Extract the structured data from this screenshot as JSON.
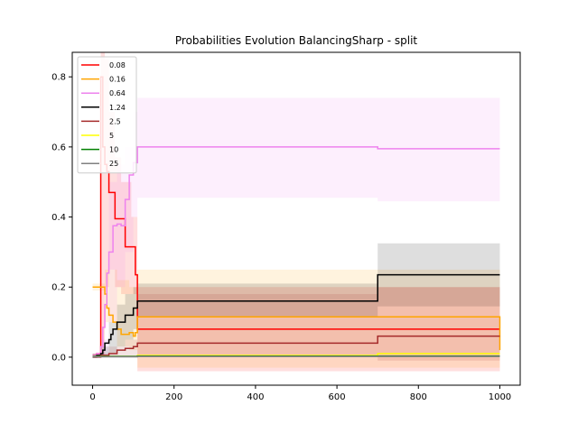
{
  "chart_data": {
    "type": "line",
    "title": "Probabilities Evolution BalancingSharp  - split",
    "xlabel": "",
    "ylabel": "",
    "xlim": [
      -50,
      1050
    ],
    "ylim": [
      -0.08,
      0.87
    ],
    "xticks": [
      0,
      200,
      400,
      600,
      800,
      1000
    ],
    "xtick_labels": [
      "0",
      "200",
      "400",
      "600",
      "800",
      "1000"
    ],
    "yticks": [
      0.0,
      0.2,
      0.4,
      0.6,
      0.8
    ],
    "ytick_labels": [
      "0.0",
      "0.2",
      "0.4",
      "0.6",
      "0.8"
    ],
    "grid": false,
    "legend_position": "top-left",
    "step": true,
    "series": [
      {
        "name": "0.08",
        "color": "#ff0000",
        "x": [
          0,
          10,
          20,
          25,
          30,
          35,
          40,
          45,
          55,
          65,
          80,
          95,
          105,
          110,
          700,
          1000
        ],
        "y": [
          0.005,
          0.01,
          0.8,
          0.6,
          0.55,
          0.53,
          0.47,
          0.47,
          0.395,
          0.395,
          0.315,
          0.315,
          0.235,
          0.08,
          0.08,
          0.08
        ],
        "band_x": [
          0,
          20,
          30,
          40,
          55,
          70,
          95,
          110,
          700,
          1000
        ],
        "band_lo": [
          0.0,
          0.0,
          0.2,
          0.25,
          0.2,
          0.18,
          0.18,
          -0.04,
          -0.04,
          -0.04
        ],
        "band_hi": [
          0.01,
          0.87,
          0.85,
          0.7,
          0.57,
          0.5,
          0.4,
          0.2,
          0.2,
          0.2
        ]
      },
      {
        "name": "0.16",
        "color": "#ffa500",
        "x": [
          0,
          10,
          20,
          30,
          35,
          40,
          50,
          60,
          70,
          90,
          100,
          105,
          110,
          700,
          1000
        ],
        "y": [
          0.2,
          0.2,
          0.2,
          0.18,
          0.14,
          0.12,
          0.1,
          0.08,
          0.065,
          0.07,
          0.06,
          0.07,
          0.115,
          0.115,
          0.02
        ],
        "band_x": [
          0,
          30,
          60,
          90,
          110,
          700,
          1000
        ],
        "band_lo": [
          0.19,
          0.1,
          0.03,
          0.02,
          -0.03,
          -0.03,
          -0.01
        ],
        "band_hi": [
          0.21,
          0.25,
          0.22,
          0.2,
          0.25,
          0.25,
          0.05
        ]
      },
      {
        "name": "0.64",
        "color": "#ee82ee",
        "x": [
          0,
          10,
          20,
          25,
          30,
          35,
          40,
          50,
          60,
          70,
          80,
          90,
          100,
          110,
          700,
          1000
        ],
        "y": [
          0.005,
          0.01,
          0.03,
          0.085,
          0.15,
          0.24,
          0.3,
          0.375,
          0.38,
          0.375,
          0.45,
          0.52,
          0.555,
          0.6,
          0.595,
          0.595
        ],
        "band_x": [
          0,
          20,
          40,
          60,
          80,
          100,
          110,
          700,
          1000
        ],
        "band_lo": [
          0.0,
          0.0,
          0.1,
          0.2,
          0.3,
          0.4,
          0.455,
          0.445,
          0.445
        ],
        "band_hi": [
          0.01,
          0.05,
          0.5,
          0.55,
          0.6,
          0.7,
          0.74,
          0.74,
          0.74
        ]
      },
      {
        "name": "1.24",
        "color": "#000000",
        "x": [
          0,
          10,
          20,
          25,
          30,
          40,
          45,
          50,
          60,
          70,
          80,
          100,
          110,
          700,
          1000
        ],
        "y": [
          0.0,
          0.005,
          0.01,
          0.02,
          0.04,
          0.05,
          0.065,
          0.08,
          0.1,
          0.1,
          0.12,
          0.14,
          0.16,
          0.235,
          0.235
        ],
        "band_x": [
          0,
          20,
          40,
          60,
          80,
          100,
          110,
          700,
          1000
        ],
        "band_lo": [
          0.0,
          0.0,
          0.01,
          0.03,
          0.05,
          0.08,
          0.115,
          0.145,
          0.145
        ],
        "band_hi": [
          0.01,
          0.03,
          0.1,
          0.15,
          0.18,
          0.2,
          0.21,
          0.325,
          0.325
        ]
      },
      {
        "name": "2.5",
        "color": "#a52a2a",
        "x": [
          0,
          20,
          40,
          60,
          80,
          100,
          110,
          700,
          1000
        ],
        "y": [
          0.0,
          0.005,
          0.01,
          0.02,
          0.025,
          0.03,
          0.04,
          0.06,
          0.06
        ],
        "band_x": [
          0,
          40,
          80,
          110,
          700,
          1000
        ],
        "band_lo": [
          0.0,
          0.0,
          0.0,
          0.0,
          -0.01,
          -0.01
        ],
        "band_hi": [
          0.01,
          0.03,
          0.05,
          0.18,
          0.2,
          0.2
        ]
      },
      {
        "name": "5",
        "color": "#ffff00",
        "x": [
          0,
          110,
          700,
          1000
        ],
        "y": [
          0.002,
          0.005,
          0.01,
          0.01
        ],
        "band_x": [],
        "band_lo": [],
        "band_hi": []
      },
      {
        "name": "10",
        "color": "#008000",
        "x": [
          0,
          110,
          700,
          1000
        ],
        "y": [
          0.002,
          0.003,
          0.003,
          0.003
        ],
        "band_x": [],
        "band_lo": [],
        "band_hi": []
      },
      {
        "name": "25",
        "color": "#808080",
        "x": [
          0,
          110,
          700,
          1000
        ],
        "y": [
          0.001,
          0.002,
          0.002,
          0.002
        ],
        "band_x": [],
        "band_lo": [],
        "band_hi": []
      }
    ]
  }
}
